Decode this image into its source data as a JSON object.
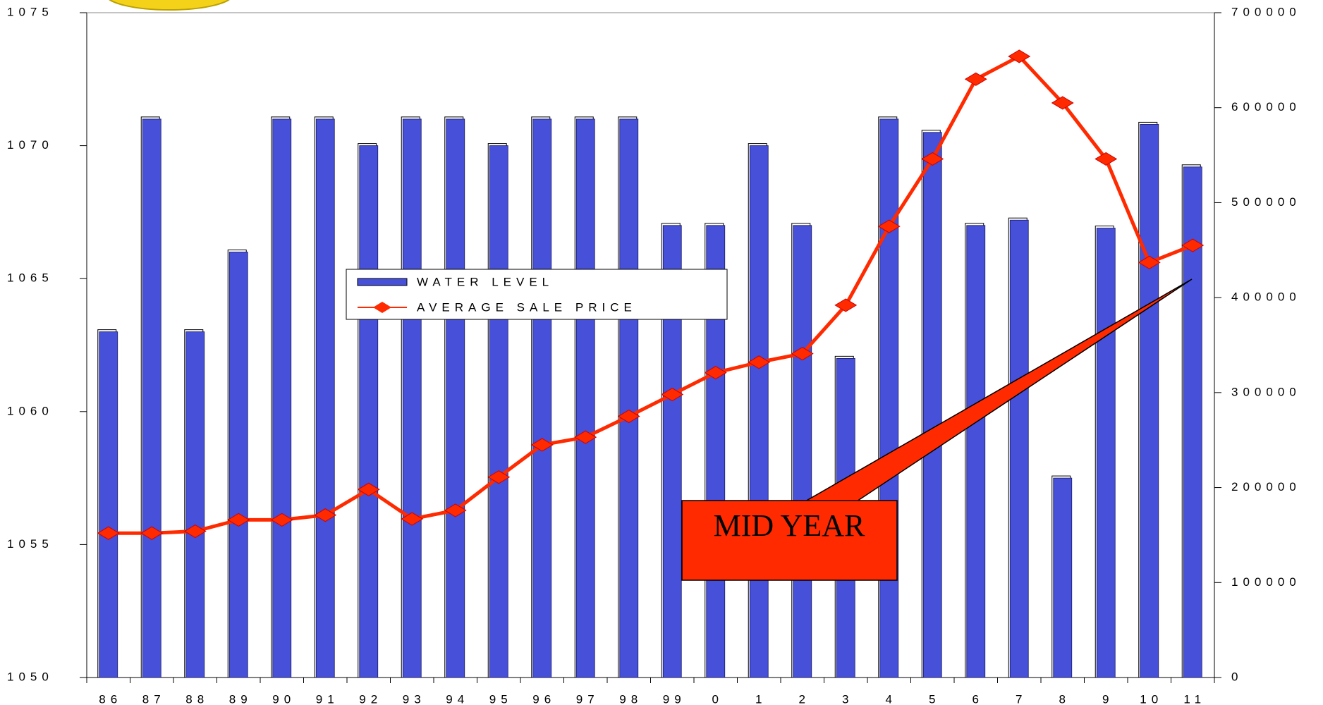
{
  "chart_data": {
    "type": "combo",
    "categories": [
      "86",
      "87",
      "88",
      "89",
      "90",
      "91",
      "92",
      "93",
      "94",
      "95",
      "96",
      "97",
      "98",
      "99",
      "0",
      "1",
      "2",
      "3",
      "4",
      "5",
      "6",
      "7",
      "8",
      "9",
      "10",
      "11"
    ],
    "series": [
      {
        "name": "WATER LEVEL",
        "type": "bar",
        "color": "#4650d8",
        "values": [
          1063,
          1071,
          1063,
          1066,
          1071,
          1071,
          1070,
          1071,
          1071,
          1070,
          1071,
          1071,
          1071,
          1067,
          1067,
          1070,
          1067,
          1062,
          1071,
          1070.5,
          1067,
          1067.2,
          1057.5,
          1066.9,
          1070.8,
          1069.2
        ]
      },
      {
        "name": "AVERAGE SALE PRICE",
        "type": "line",
        "color": "#ff2a00",
        "axis": "y2",
        "values": [
          152000,
          152000,
          154000,
          166000,
          166000,
          171000,
          198000,
          167000,
          176000,
          211000,
          245000,
          253000,
          275000,
          298000,
          321000,
          332000,
          341000,
          392000,
          475000,
          546000,
          630000,
          654000,
          605000,
          546000,
          437000,
          455000
        ]
      }
    ],
    "ylim": [
      1050,
      1075
    ],
    "yticks": [
      1050,
      1055,
      1060,
      1065,
      1070,
      1075
    ],
    "y2lim": [
      0,
      700000
    ],
    "y2ticks": [
      0,
      100000,
      200000,
      300000,
      400000,
      500000,
      600000,
      700000
    ],
    "legend": "center-left",
    "annotations": [
      {
        "text": "MID YEAR",
        "color": "#ff2a00"
      }
    ]
  }
}
